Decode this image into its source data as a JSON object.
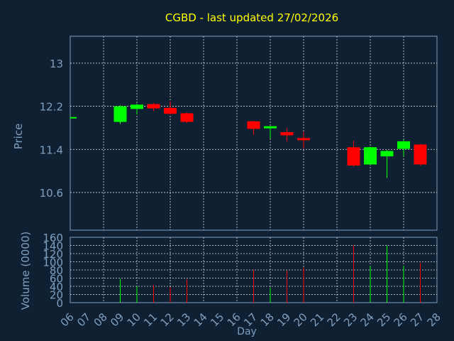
{
  "chart_data": [
    {
      "type": "candlestick",
      "title": "CGBD - last updated 27/02/2026",
      "ylabel": "Price",
      "ylim": [
        9.9,
        13.5
      ],
      "yticks": [
        "10.6",
        "11.4",
        "12.2",
        "13"
      ],
      "ytick_values": [
        10.6,
        11.4,
        12.2,
        13.0
      ],
      "grid": true,
      "candles": [
        {
          "day": "06",
          "open": 11.99,
          "high": 12.0,
          "low": 11.97,
          "close": 12.0
        },
        {
          "day": "09",
          "open": 11.91,
          "high": 12.22,
          "low": 11.87,
          "close": 12.2
        },
        {
          "day": "10",
          "open": 12.15,
          "high": 12.25,
          "low": 12.05,
          "close": 12.23
        },
        {
          "day": "11",
          "open": 12.24,
          "high": 12.26,
          "low": 12.11,
          "close": 12.16
        },
        {
          "day": "12",
          "open": 12.17,
          "high": 12.3,
          "low": 12.05,
          "close": 12.06
        },
        {
          "day": "13",
          "open": 12.07,
          "high": 12.08,
          "low": 11.89,
          "close": 11.91
        },
        {
          "day": "17",
          "open": 11.92,
          "high": 11.93,
          "low": 11.67,
          "close": 11.78
        },
        {
          "day": "18",
          "open": 11.79,
          "high": 11.81,
          "low": 11.6,
          "close": 11.83
        },
        {
          "day": "19",
          "open": 11.72,
          "high": 11.8,
          "low": 11.55,
          "close": 11.66
        },
        {
          "day": "20",
          "open": 11.61,
          "high": 11.73,
          "low": 11.42,
          "close": 11.57
        },
        {
          "day": "23",
          "open": 11.44,
          "high": 11.56,
          "low": 11.08,
          "close": 11.1
        },
        {
          "day": "24",
          "open": 11.12,
          "high": 11.45,
          "low": 11.12,
          "close": 11.44
        },
        {
          "day": "25",
          "open": 11.27,
          "high": 11.39,
          "low": 10.87,
          "close": 11.37
        },
        {
          "day": "26",
          "open": 11.41,
          "high": 11.58,
          "low": 11.27,
          "close": 11.55
        },
        {
          "day": "27",
          "open": 11.49,
          "high": 11.5,
          "low": 11.1,
          "close": 11.12
        }
      ]
    },
    {
      "type": "bar",
      "ylabel": "Volume (0000)",
      "xlabel": "Day",
      "ylim": [
        0,
        160
      ],
      "yticks": [
        "0",
        "20",
        "40",
        "60",
        "80",
        "100",
        "120",
        "140",
        "160"
      ],
      "ytick_values": [
        0,
        20,
        40,
        60,
        80,
        100,
        120,
        140,
        160
      ],
      "x_labels": [
        "06",
        "07",
        "08",
        "09",
        "10",
        "11",
        "12",
        "13",
        "14",
        "15",
        "16",
        "17",
        "18",
        "19",
        "20",
        "21",
        "22",
        "23",
        "24",
        "25",
        "26",
        "27",
        "28"
      ],
      "bars": [
        {
          "day": "06",
          "value": 0,
          "direction": "up"
        },
        {
          "day": "09",
          "value": 58,
          "direction": "up"
        },
        {
          "day": "10",
          "value": 40,
          "direction": "up"
        },
        {
          "day": "11",
          "value": 43,
          "direction": "down"
        },
        {
          "day": "12",
          "value": 38,
          "direction": "down"
        },
        {
          "day": "13",
          "value": 57,
          "direction": "down"
        },
        {
          "day": "17",
          "value": 80,
          "direction": "down"
        },
        {
          "day": "18",
          "value": 37,
          "direction": "up"
        },
        {
          "day": "19",
          "value": 78,
          "direction": "down"
        },
        {
          "day": "20",
          "value": 86,
          "direction": "down"
        },
        {
          "day": "23",
          "value": 140,
          "direction": "down"
        },
        {
          "day": "24",
          "value": 90,
          "direction": "up"
        },
        {
          "day": "25",
          "value": 140,
          "direction": "up"
        },
        {
          "day": "26",
          "value": 90,
          "direction": "up"
        },
        {
          "day": "27",
          "value": 97,
          "direction": "down"
        }
      ]
    }
  ],
  "colors": {
    "background": "#0f2033",
    "title": "#ffff00",
    "axis_text": "#7f9fbf",
    "up": "#00ff00",
    "down": "#ff0000",
    "grid": "#dddddd"
  }
}
